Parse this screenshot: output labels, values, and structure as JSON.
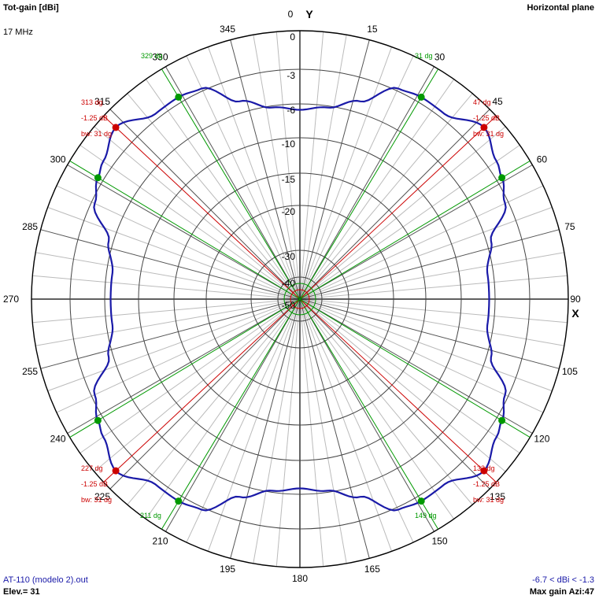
{
  "header": {
    "title": "Tot-gain [dBi]",
    "frequency": "17 MHz",
    "plane": "Horizontal plane"
  },
  "footer": {
    "file": "AT-110 (modelo 2).out",
    "elevation": "Elev.= 31",
    "range": "-6.7 < dBi < -1.3",
    "max_gain": "Max gain Azi:47"
  },
  "colors": {
    "pattern": "#1a1aa8",
    "grid": "#000000",
    "beam_lines": "#cc0000",
    "half_power_lines": "#009900",
    "background": "#ffffff"
  },
  "chart_data": {
    "type": "polar",
    "axis_labels": {
      "y": "Y",
      "x": "X"
    },
    "angle_ticks": [
      "0",
      "15",
      "30",
      "45",
      "60",
      "75",
      "90",
      "105",
      "120",
      "135",
      "150",
      "165",
      "180",
      "195",
      "210",
      "225",
      "240",
      "255",
      "270",
      "285",
      "300",
      "315",
      "330",
      "345"
    ],
    "radial_ticks": [
      "0",
      "-3",
      "-6",
      "-10",
      "-15",
      "-20",
      "-30",
      "-40",
      "-50"
    ],
    "radial_db": [
      0,
      -3,
      -6,
      -10,
      -15,
      -20,
      -30,
      -40,
      -50
    ],
    "pattern": {
      "azimuth_deg": [
        0,
        8,
        17,
        25,
        31,
        38,
        47,
        55,
        59,
        65,
        73,
        82,
        90
      ],
      "gain_dbi": [
        -6.7,
        -6.2,
        -5.0,
        -2.8,
        -2.55,
        -2.6,
        -1.3,
        -2.2,
        -2.55,
        -3.3,
        -5.6,
        -6.7,
        -6.7
      ],
      "symmetry": "four-fold (mirrored about X and Y axes)"
    },
    "max_gain_markers": [
      {
        "azimuth": "47 dg",
        "level": "-1.25 dB",
        "bw": "bw: 31 dg"
      },
      {
        "azimuth": "133 dg",
        "level": "-1.25 dB",
        "bw": "bw: 31 dg"
      },
      {
        "azimuth": "227 dg",
        "level": "-1.25 dB",
        "bw": "bw: 31 dg"
      },
      {
        "azimuth": "313 dg",
        "level": "-1.25 dB",
        "bw": "bw: 31 dg"
      }
    ],
    "beam_azimuths": [
      47,
      133,
      227,
      313
    ],
    "half_power_azimuths": [
      31,
      59,
      121,
      149,
      211,
      239,
      301,
      329
    ],
    "half_power_labels": [
      {
        "azimuth": 31,
        "text": "31 dg"
      },
      {
        "azimuth": 329,
        "text": "329 dg"
      },
      {
        "azimuth": 149,
        "text": "149 dg"
      },
      {
        "azimuth": 211,
        "text": "211 dg"
      }
    ],
    "grid": true
  }
}
